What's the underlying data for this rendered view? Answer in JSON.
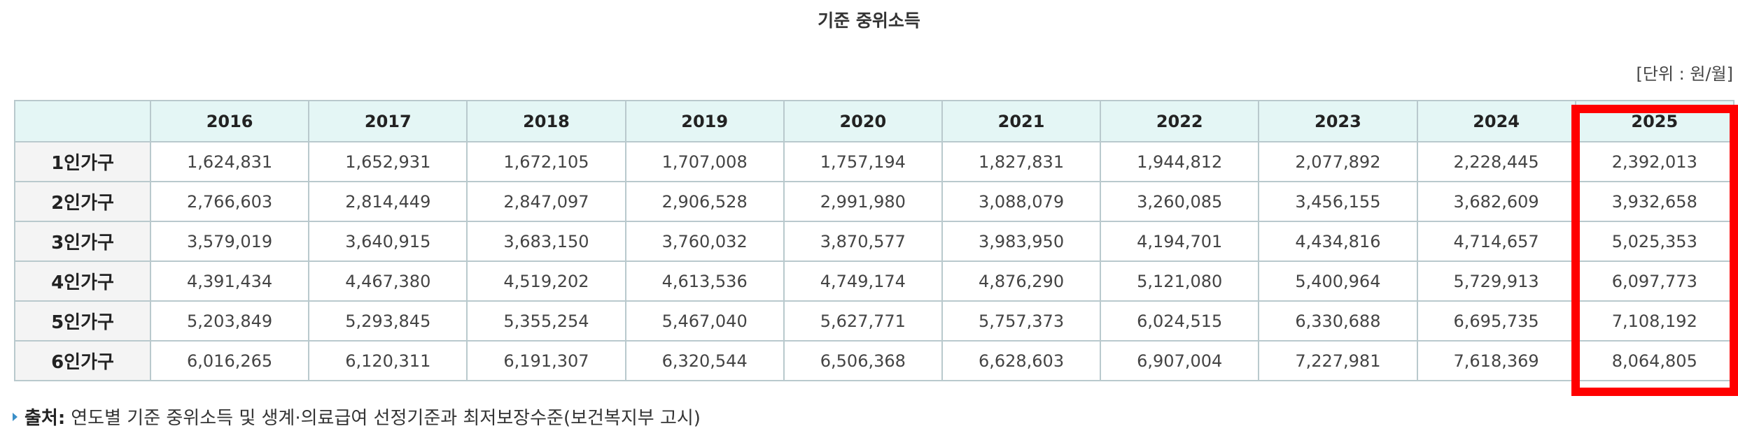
{
  "title": "기준 중위소득",
  "unit": "[단위 : 원/월]",
  "table": {
    "years": [
      "2016",
      "2017",
      "2018",
      "2019",
      "2020",
      "2021",
      "2022",
      "2023",
      "2024",
      "2025"
    ],
    "rows": [
      {
        "label": "1인가구",
        "values": [
          "1,624,831",
          "1,652,931",
          "1,672,105",
          "1,707,008",
          "1,757,194",
          "1,827,831",
          "1,944,812",
          "2,077,892",
          "2,228,445",
          "2,392,013"
        ]
      },
      {
        "label": "2인가구",
        "values": [
          "2,766,603",
          "2,814,449",
          "2,847,097",
          "2,906,528",
          "2,991,980",
          "3,088,079",
          "3,260,085",
          "3,456,155",
          "3,682,609",
          "3,932,658"
        ]
      },
      {
        "label": "3인가구",
        "values": [
          "3,579,019",
          "3,640,915",
          "3,683,150",
          "3,760,032",
          "3,870,577",
          "3,983,950",
          "4,194,701",
          "4,434,816",
          "4,714,657",
          "5,025,353"
        ]
      },
      {
        "label": "4인가구",
        "values": [
          "4,391,434",
          "4,467,380",
          "4,519,202",
          "4,613,536",
          "4,749,174",
          "4,876,290",
          "5,121,080",
          "5,400,964",
          "5,729,913",
          "6,097,773"
        ]
      },
      {
        "label": "5인가구",
        "values": [
          "5,203,849",
          "5,293,845",
          "5,355,254",
          "5,467,040",
          "5,627,771",
          "5,757,373",
          "6,024,515",
          "6,330,688",
          "6,695,735",
          "7,108,192"
        ]
      },
      {
        "label": "6인가구",
        "values": [
          "6,016,265",
          "6,120,311",
          "6,191,307",
          "6,320,544",
          "6,506,368",
          "6,628,603",
          "6,907,004",
          "7,227,981",
          "7,618,369",
          "8,064,805"
        ]
      }
    ]
  },
  "source": {
    "label": "출처:",
    "text": "연도별 기준 중위소득 및 생계·의료급여 선정기준과 최저보장수준(보건복지부 고시)"
  },
  "colors": {
    "header_bg": "#e4f6f5",
    "row_label_bg": "#f4f4f4",
    "border": "#b9c9cd",
    "highlight": "#ff0000",
    "source_arrow": "#3a8fc8"
  }
}
